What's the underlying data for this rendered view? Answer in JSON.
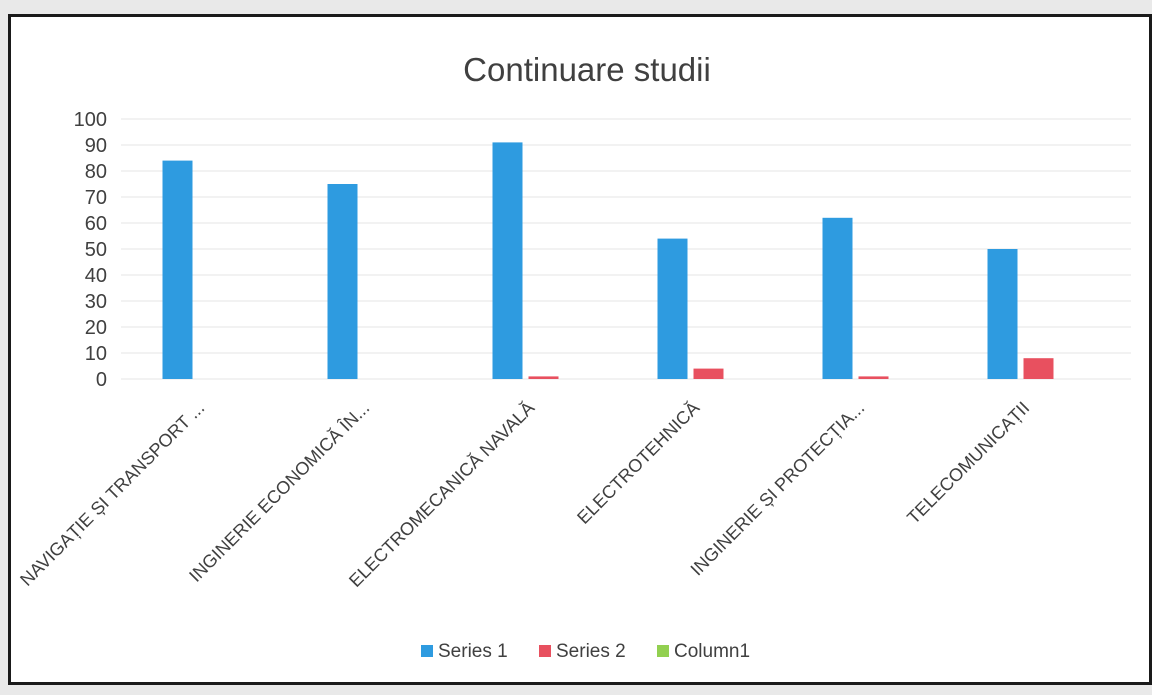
{
  "chart_data": {
    "type": "bar",
    "title": "Continuare studii",
    "xlabel": "",
    "ylabel": "",
    "ylim": [
      0,
      100
    ],
    "yticks": [
      0,
      10,
      20,
      30,
      40,
      50,
      60,
      70,
      80,
      90,
      100
    ],
    "grid": true,
    "legend_position": "bottom",
    "categories": [
      "NAVIGAȚIE ȘI TRANSPORT ...",
      "INGINERIE ECONOMICĂ ÎN...",
      "ELECTROMECANICĂ NAVALĂ",
      "ELECTROTEHNICĂ",
      "INGINERIE ȘI PROTECȚIA...",
      "TELECOMUNICAȚII"
    ],
    "series": [
      {
        "name": "Series 1",
        "color": "#2e9be0",
        "values": [
          84,
          75,
          91,
          54,
          62,
          50
        ]
      },
      {
        "name": "Series 2",
        "color": "#e8505f",
        "values": [
          0,
          0,
          1,
          4,
          1,
          8
        ]
      },
      {
        "name": "Column1",
        "color": "#92d050",
        "values": [
          0,
          0,
          0,
          0,
          0,
          0
        ]
      }
    ]
  }
}
